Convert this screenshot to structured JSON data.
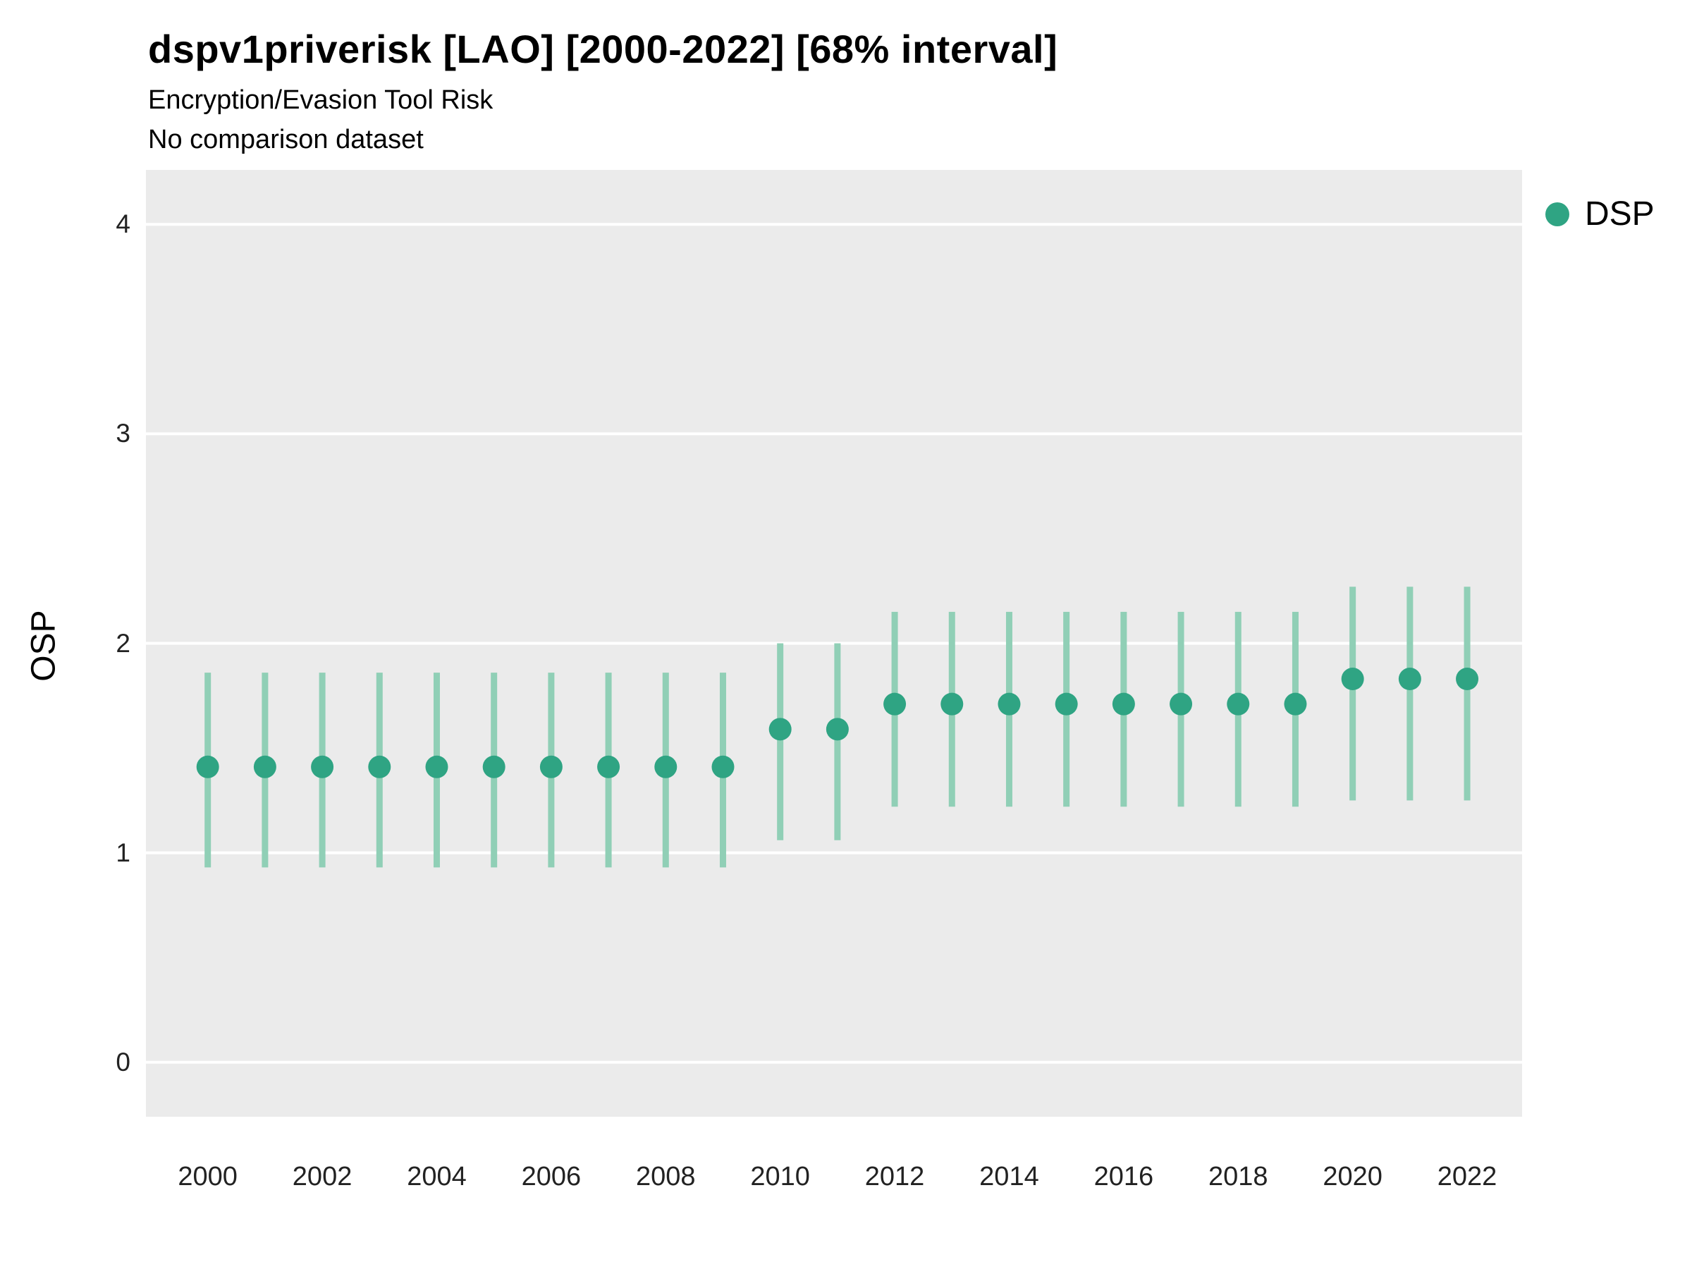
{
  "header": {
    "title": "dspv1priverisk [LAO] [2000-2022] [68% interval]",
    "subtitle": "Encryption/Evasion Tool Risk",
    "comparison_note": "No comparison dataset"
  },
  "legend": {
    "label": "DSP"
  },
  "axes": {
    "y_label": "OSP",
    "y_ticks": [
      0,
      1,
      2,
      3,
      4
    ],
    "x_ticks": [
      2000,
      2002,
      2004,
      2006,
      2008,
      2010,
      2012,
      2014,
      2016,
      2018,
      2020,
      2022
    ]
  },
  "colors": {
    "panel_bg": "#EBEBEB",
    "grid": "#FFFFFF",
    "point": "#2FA483",
    "interval": "#90CFB6"
  },
  "chart_data": {
    "type": "pointrange",
    "title": "dspv1priverisk [LAO] [2000-2022] [68% interval]",
    "subtitle": "Encryption/Evasion Tool Risk",
    "xlabel": "",
    "ylabel": "OSP",
    "legend_position": "right",
    "grid": true,
    "xlim": [
      1998.92,
      2022.96
    ],
    "ylim": [
      -0.26,
      4.26
    ],
    "x": [
      2000,
      2001,
      2002,
      2003,
      2004,
      2005,
      2006,
      2007,
      2008,
      2009,
      2010,
      2011,
      2012,
      2013,
      2014,
      2015,
      2016,
      2017,
      2018,
      2019,
      2020,
      2021,
      2022
    ],
    "series": [
      {
        "name": "DSP",
        "mid": [
          1.41,
          1.41,
          1.41,
          1.41,
          1.41,
          1.41,
          1.41,
          1.41,
          1.41,
          1.41,
          1.59,
          1.59,
          1.71,
          1.71,
          1.71,
          1.71,
          1.71,
          1.71,
          1.71,
          1.71,
          1.83,
          1.83,
          1.83
        ],
        "lo": [
          0.93,
          0.93,
          0.93,
          0.93,
          0.93,
          0.93,
          0.93,
          0.93,
          0.93,
          0.93,
          1.06,
          1.06,
          1.22,
          1.22,
          1.22,
          1.22,
          1.22,
          1.22,
          1.22,
          1.22,
          1.25,
          1.25,
          1.25
        ],
        "hi": [
          1.86,
          1.86,
          1.86,
          1.86,
          1.86,
          1.86,
          1.86,
          1.86,
          1.86,
          1.86,
          2.0,
          2.0,
          2.15,
          2.15,
          2.15,
          2.15,
          2.15,
          2.15,
          2.15,
          2.15,
          2.27,
          2.27,
          2.27
        ]
      }
    ]
  }
}
